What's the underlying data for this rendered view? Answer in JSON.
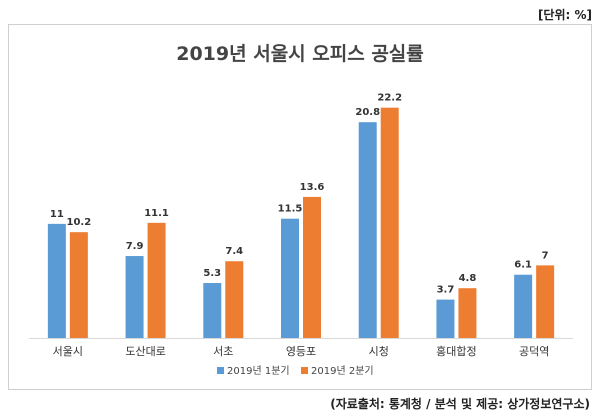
{
  "unit_note": "[단위: %]",
  "source_note": "(자료출처: 통계청 / 분석 및 제공: 상가정보연구소)",
  "chart_data": {
    "type": "bar",
    "title": "2019년 서울시 오피스 공실률",
    "categories": [
      "서울시",
      "도산대로",
      "서초",
      "영등포",
      "시청",
      "홍대합정",
      "공덕역"
    ],
    "series": [
      {
        "name": "2019년 1분기",
        "color": "#5b9bd5",
        "values": [
          11,
          7.9,
          5.3,
          11.5,
          20.8,
          3.7,
          6.1
        ],
        "labels": [
          "11",
          "7.9",
          "5.3",
          "11.5",
          "20.8",
          "3.7",
          "6.1"
        ]
      },
      {
        "name": "2019년 2분기",
        "color": "#ed7d31",
        "values": [
          10.2,
          11.1,
          7.4,
          13.6,
          22.2,
          4.8,
          7
        ],
        "labels": [
          "10.2",
          "11.1",
          "7.4",
          "13.6",
          "22.2",
          "4.8",
          "7"
        ]
      }
    ],
    "ylim": [
      0,
      24
    ],
    "grid": false,
    "legend_position": "bottom"
  }
}
